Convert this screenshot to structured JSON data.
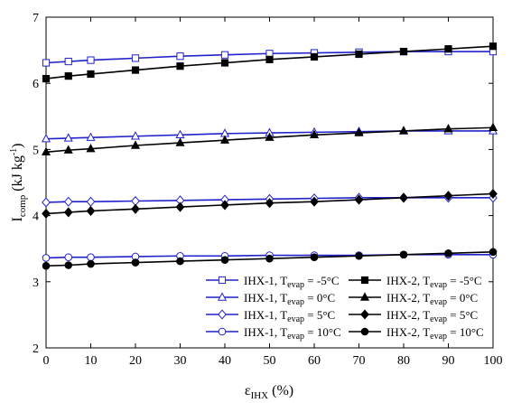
{
  "chart_data": {
    "type": "line",
    "x": [
      0,
      5,
      10,
      20,
      30,
      40,
      50,
      60,
      70,
      80,
      90,
      100
    ],
    "xlim": [
      0,
      100
    ],
    "ylim": [
      2,
      7
    ],
    "xticks": [
      0,
      10,
      20,
      30,
      40,
      50,
      60,
      70,
      80,
      90,
      100
    ],
    "yticks": [
      2,
      3,
      4,
      5,
      6,
      7
    ],
    "xlabel": {
      "base": "ε",
      "sub": "IHX",
      "suffix": " (%)"
    },
    "ylabel": {
      "base": "I",
      "sub": "comp",
      "mid": " (kJ kg",
      "sup": "-1",
      "end": ")"
    },
    "grid": false,
    "legend_position": "bottom-right",
    "series": [
      {
        "name": {
          "prefix": "IHX-1, T",
          "sub": "evap",
          "suffix": " = -5°C"
        },
        "color": "#2222cc",
        "marker": "square-open",
        "values": [
          6.31,
          6.33,
          6.35,
          6.38,
          6.41,
          6.43,
          6.45,
          6.46,
          6.47,
          6.48,
          6.48,
          6.48
        ]
      },
      {
        "name": {
          "prefix": "IHX-2, T",
          "sub": "evap",
          "suffix": " = -5°C"
        },
        "color": "#000000",
        "marker": "square-filled",
        "values": [
          6.07,
          6.11,
          6.14,
          6.2,
          6.26,
          6.31,
          6.36,
          6.4,
          6.44,
          6.48,
          6.52,
          6.56
        ]
      },
      {
        "name": {
          "prefix": "IHX-1, T",
          "sub": "evap",
          "suffix": " = 0°C"
        },
        "color": "#2222cc",
        "marker": "triangle-open",
        "values": [
          5.16,
          5.17,
          5.18,
          5.2,
          5.22,
          5.24,
          5.25,
          5.26,
          5.27,
          5.28,
          5.28,
          5.28
        ]
      },
      {
        "name": {
          "prefix": "IHX-2, T",
          "sub": "evap",
          "suffix": " = 0°C"
        },
        "color": "#000000",
        "marker": "triangle-filled",
        "values": [
          4.96,
          4.99,
          5.01,
          5.06,
          5.1,
          5.14,
          5.18,
          5.22,
          5.25,
          5.28,
          5.31,
          5.33
        ]
      },
      {
        "name": {
          "prefix": "IHX-1, T",
          "sub": "evap",
          "suffix": " = 5°C"
        },
        "color": "#2222cc",
        "marker": "diamond-open",
        "values": [
          4.2,
          4.21,
          4.21,
          4.22,
          4.23,
          4.24,
          4.25,
          4.26,
          4.27,
          4.27,
          4.27,
          4.27
        ]
      },
      {
        "name": {
          "prefix": "IHX-2, T",
          "sub": "evap",
          "suffix": " = 5°C"
        },
        "color": "#000000",
        "marker": "diamond-filled",
        "values": [
          4.03,
          4.05,
          4.07,
          4.1,
          4.13,
          4.16,
          4.19,
          4.21,
          4.24,
          4.27,
          4.3,
          4.33
        ]
      },
      {
        "name": {
          "prefix": "IHX-1, T",
          "sub": "evap",
          "suffix": " = 10°C"
        },
        "color": "#2222cc",
        "marker": "circle-open",
        "values": [
          3.36,
          3.37,
          3.37,
          3.38,
          3.39,
          3.39,
          3.4,
          3.4,
          3.4,
          3.41,
          3.41,
          3.41
        ]
      },
      {
        "name": {
          "prefix": "IHX-2, T",
          "sub": "evap",
          "suffix": " = 10°C"
        },
        "color": "#000000",
        "marker": "circle-filled",
        "values": [
          3.24,
          3.25,
          3.27,
          3.29,
          3.31,
          3.33,
          3.35,
          3.37,
          3.39,
          3.41,
          3.43,
          3.45
        ]
      }
    ]
  }
}
